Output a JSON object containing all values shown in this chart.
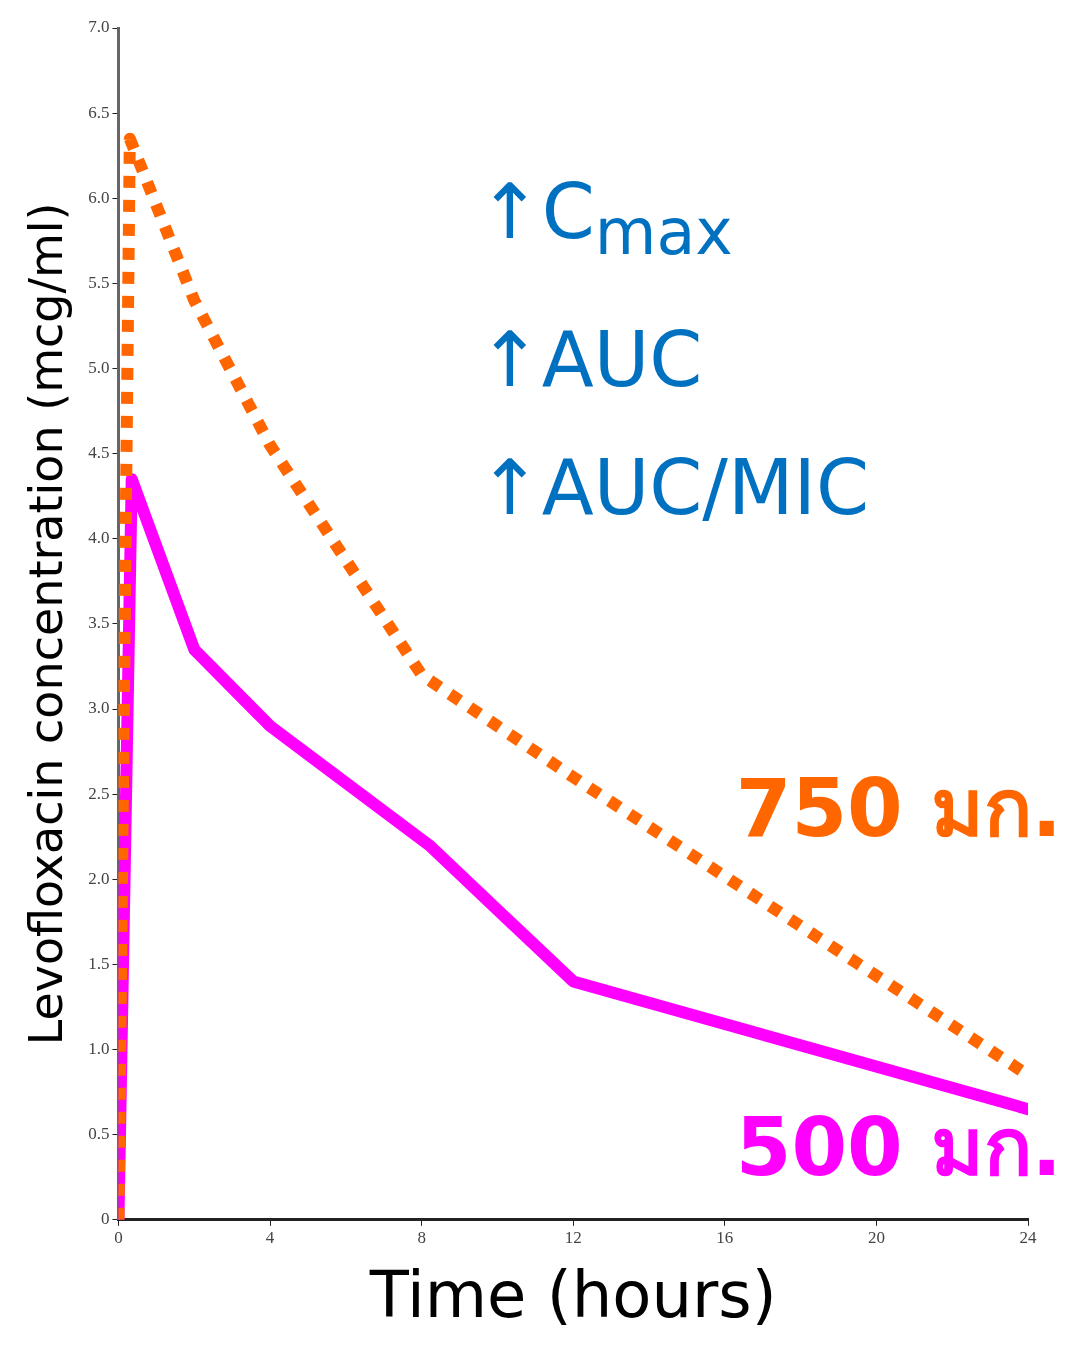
{
  "chart_data": {
    "type": "line",
    "xlabel": "Time (hours)",
    "ylabel": "Levofloxacin concentration (mcg/ml)",
    "xlim": [
      0,
      24
    ],
    "xticks": [
      0,
      4,
      8,
      12,
      16,
      20,
      24
    ],
    "ylim": [
      0,
      7
    ],
    "yticks": [
      0,
      0.5,
      {
        "value": 1,
        "label": "1.0"
      },
      1.5,
      {
        "value": 2,
        "label": "2.0"
      },
      2.5,
      {
        "value": 3,
        "label": "3.0"
      },
      3.5,
      {
        "value": 4,
        "label": "4.0"
      },
      4.5,
      {
        "value": 5,
        "label": "5.0"
      },
      5.5,
      {
        "value": 6,
        "label": "6.0"
      },
      6.5,
      {
        "value": 7,
        "label": "7.0"
      }
    ],
    "grid": false,
    "legend": false,
    "annotations": [
      "↑C$_{max}$",
      "↑AUC",
      "↑AUC/MIC"
    ],
    "series": [
      {
        "name": "750 มก.",
        "color": "#ff6600",
        "line_style": "dotted",
        "x": [
          0,
          0.3,
          2,
          4,
          8,
          12,
          24
        ],
        "values": [
          0,
          6.35,
          5.4,
          4.55,
          3.2,
          2.6,
          0.85
        ]
      },
      {
        "name": "500 มก.",
        "color": "#ff00ff",
        "line_style": "solid",
        "x": [
          0,
          0.35,
          2,
          4,
          8.2,
          12,
          24
        ],
        "values": [
          0,
          4.35,
          3.35,
          2.9,
          2.2,
          1.4,
          0.65
        ]
      }
    ]
  }
}
